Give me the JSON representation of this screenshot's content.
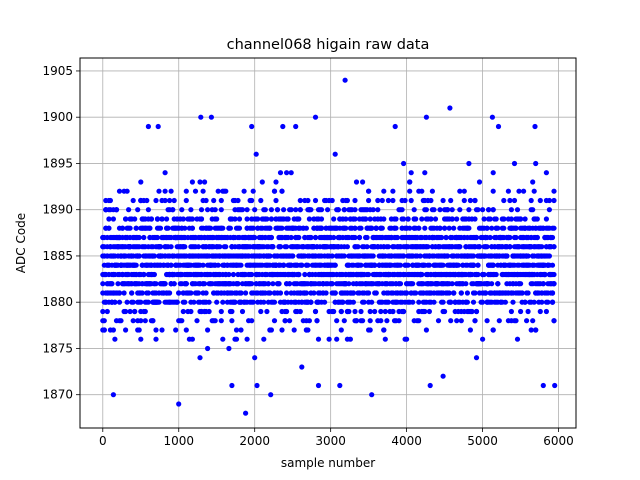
{
  "chart_data": {
    "type": "scatter",
    "title": "channel068 higain raw data",
    "xlabel": "sample number",
    "ylabel": "ADC Code",
    "xlim": [
      -300,
      6230
    ],
    "ylim": [
      1866.4,
      1906.4
    ],
    "x_ticks": [
      0,
      1000,
      2000,
      3000,
      4000,
      5000,
      6000
    ],
    "x_tick_labels": [
      "0",
      "1000",
      "2000",
      "3000",
      "4000",
      "5000",
      "6000"
    ],
    "y_ticks": [
      1870,
      1875,
      1880,
      1885,
      1890,
      1895,
      1900,
      1905
    ],
    "y_tick_labels": [
      "1870",
      "1875",
      "1880",
      "1885",
      "1890",
      "1895",
      "1900",
      "1905"
    ],
    "grid": true,
    "marker_color": "#0000ff",
    "series": [
      {
        "x_range": [
          0,
          5950
        ],
        "x_step": 20,
        "y_range": [
          1868,
          1904
        ],
        "distribution": "dense band 1876-1892 centered near 1884, sparse tails",
        "points": [
          {
            "x": 1000,
            "y": 1869
          },
          {
            "x": 1880,
            "y": 1868
          },
          {
            "x": 3190,
            "y": 1904
          },
          {
            "x": 4570,
            "y": 1901
          },
          {
            "x": 5130,
            "y": 1900
          },
          {
            "x": 2800,
            "y": 1900
          },
          {
            "x": 1290,
            "y": 1900
          },
          {
            "x": 1430,
            "y": 1900
          },
          {
            "x": 4260,
            "y": 1900
          },
          {
            "x": 140,
            "y": 1870
          },
          {
            "x": 2210,
            "y": 1870
          },
          {
            "x": 3540,
            "y": 1870
          },
          {
            "x": 1700,
            "y": 1871
          },
          {
            "x": 2030,
            "y": 1871
          },
          {
            "x": 2840,
            "y": 1871
          },
          {
            "x": 3120,
            "y": 1871
          },
          {
            "x": 4310,
            "y": 1871
          },
          {
            "x": 5950,
            "y": 1871
          },
          {
            "x": 5800,
            "y": 1871
          },
          {
            "x": 730,
            "y": 1899
          },
          {
            "x": 600,
            "y": 1899
          },
          {
            "x": 1960,
            "y": 1899
          },
          {
            "x": 2370,
            "y": 1899
          },
          {
            "x": 2540,
            "y": 1899
          },
          {
            "x": 3850,
            "y": 1899
          },
          {
            "x": 5690,
            "y": 1899
          },
          {
            "x": 5210,
            "y": 1899
          }
        ]
      }
    ]
  }
}
